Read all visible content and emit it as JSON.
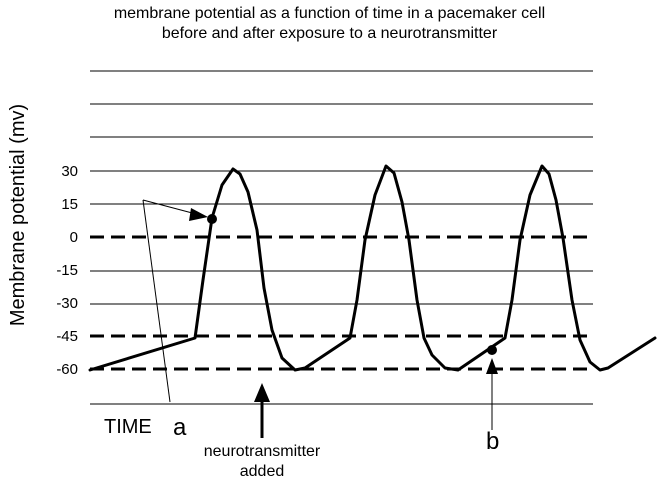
{
  "title": {
    "line1": "membrane potential as a function of time in a pacemaker cell",
    "line2": "before and after exposure to a neurotransmitter"
  },
  "y_axis": {
    "label": "Membrane potential (mv)",
    "ticks": [
      "30",
      "15",
      "0",
      "-15",
      "-30",
      "-45",
      "-60"
    ]
  },
  "labels": {
    "time": "TIME",
    "point_a": "a",
    "point_b": "b",
    "neurotransmitter_line1": "neurotransmitter",
    "neurotransmitter_line2": "added"
  },
  "reference_lines": {
    "dashed_mv": [
      0,
      -45,
      -60
    ]
  }
}
